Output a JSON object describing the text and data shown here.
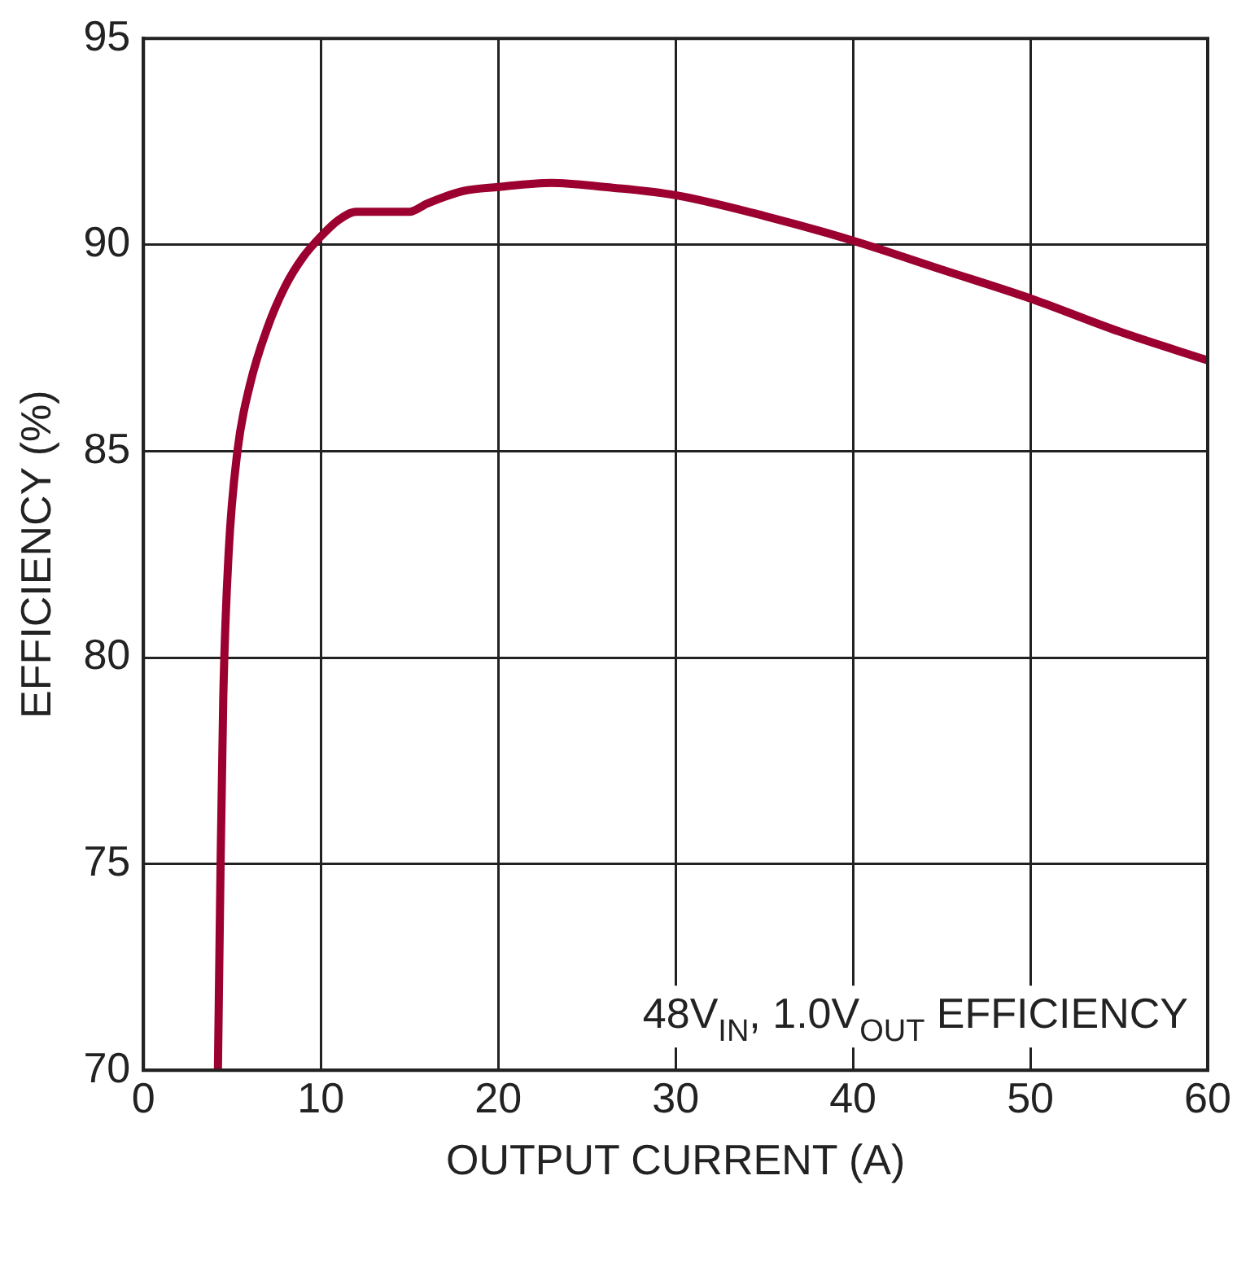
{
  "chart_data": {
    "type": "line",
    "xlabel": "OUTPUT CURRENT (A)",
    "ylabel": "EFFICIENCY (%)",
    "annotations": [
      "48V$_{IN}$, 1.0V$_{OUT}$ EFFICIENCY"
    ],
    "x": [
      4.2,
      4.35,
      4.5,
      4.8,
      5.3,
      6,
      7,
      8,
      9,
      10,
      11,
      12,
      13,
      14,
      15,
      16,
      18,
      20,
      23,
      26,
      30,
      35,
      40,
      45,
      50,
      55,
      60
    ],
    "series": [
      {
        "color": "#9b0030",
        "values": [
          70,
          75,
          79,
          82.5,
          85,
          86.6,
          88,
          89,
          89.7,
          90.2,
          90.6,
          90.8,
          90.8,
          90.8,
          90.8,
          91,
          91.3,
          91.4,
          91.5,
          91.4,
          91.2,
          90.7,
          90.1,
          89.4,
          88.7,
          87.9,
          87.2
        ]
      }
    ],
    "xlim": [
      0,
      60
    ],
    "xticks": [
      0,
      10,
      20,
      30,
      40,
      50,
      60
    ],
    "ylim": [
      70,
      95
    ],
    "yticks": [
      70,
      75,
      80,
      85,
      90,
      95
    ],
    "grid": true,
    "legend": false,
    "marker": "none",
    "line_style": "solid"
  }
}
